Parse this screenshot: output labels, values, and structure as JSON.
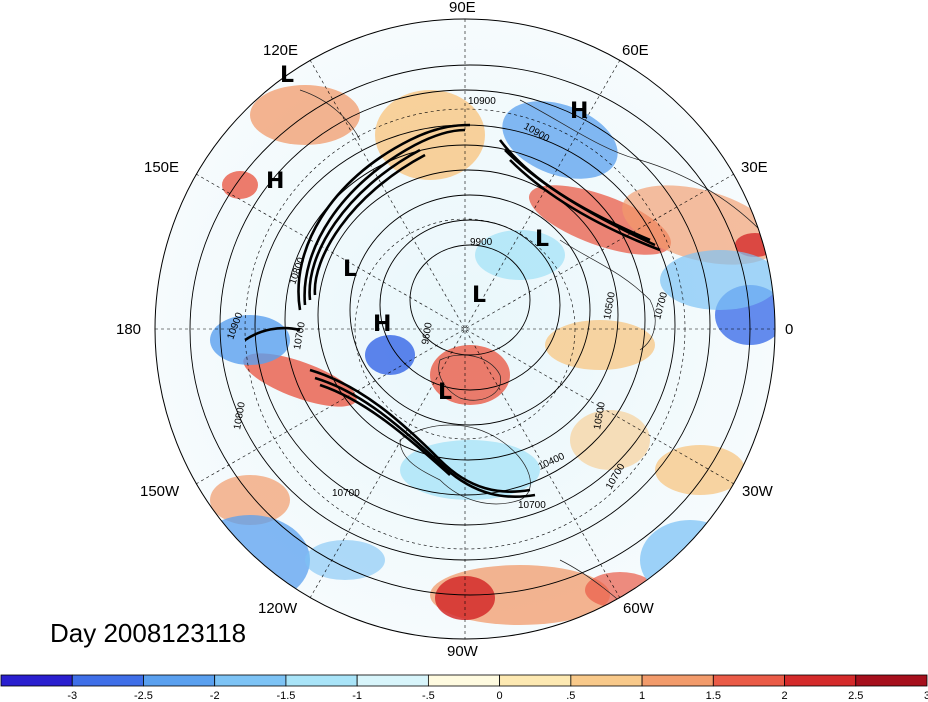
{
  "title": "Day 2008123118",
  "longitude_labels": [
    "90E",
    "60E",
    "30E",
    "0",
    "30W",
    "60W",
    "90W",
    "120W",
    "150W",
    "180",
    "150E",
    "120E"
  ],
  "pressure_centers": [
    "L",
    "H",
    "H",
    "L",
    "L",
    "L",
    "H",
    "L"
  ],
  "contour_labels": [
    "10900",
    "10900",
    "9900",
    "10800",
    "10700",
    "9600",
    "10500",
    "10400",
    "10700",
    "10700",
    "10800",
    "10900",
    "10700",
    "10500",
    "10700"
  ],
  "colorbar": {
    "tick_labels": [
      "-3",
      "-2.5",
      "-2",
      "-1.5",
      "-1",
      "-.5",
      "0",
      ".5",
      "1",
      "1.5",
      "2",
      "2.5",
      "3"
    ],
    "colors": [
      "#2a1fcf",
      "#3f6fe8",
      "#5aa0ef",
      "#7dc3f5",
      "#a9e4f8",
      "#d8f5fb",
      "#fffbe0",
      "#fde9b2",
      "#f8c98a",
      "#f29b6b",
      "#ea5b47",
      "#d42a2a",
      "#a60f1c"
    ]
  }
}
